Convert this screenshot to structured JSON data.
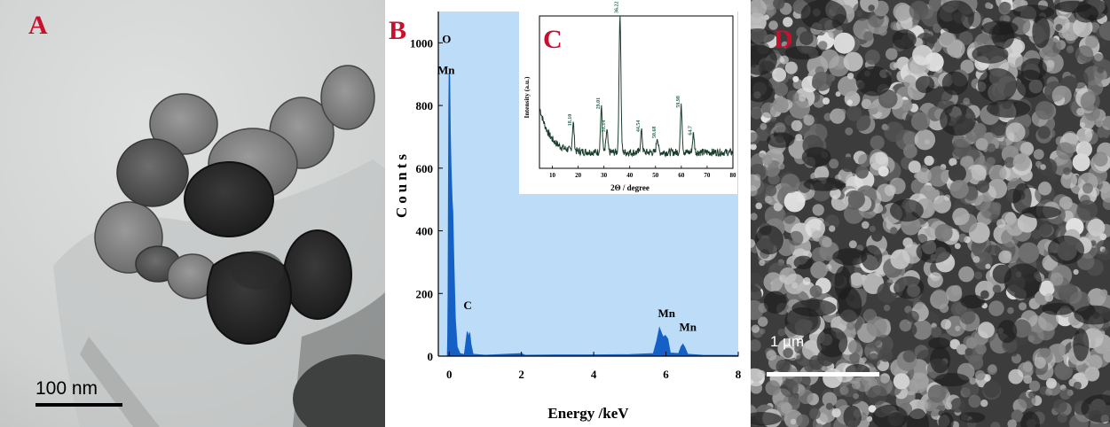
{
  "panels": {
    "a": {
      "letter": "A",
      "scale_bar": "100 nm"
    },
    "b": {
      "letter": "B"
    },
    "c": {
      "letter": "C"
    },
    "d": {
      "letter": "D",
      "scale_bar": "1 µm"
    }
  },
  "colors": {
    "panel_letter": "#c8102e",
    "eds_background": "#bcdcf7",
    "eds_line": "#1560c4",
    "xrd_line": "#1a3d2e",
    "xrd_peak_label": "#1f6b4a"
  },
  "chart_data": [
    {
      "type": "area",
      "name": "EDS spectrum",
      "xlabel": "Energy /keV",
      "ylabel": "Counts",
      "xlim": [
        -0.3,
        8
      ],
      "ylim": [
        0,
        1100
      ],
      "xticks": [
        0,
        2,
        4,
        6,
        8
      ],
      "yticks": [
        0,
        200,
        400,
        600,
        800,
        1000
      ],
      "grid": false,
      "peaks": [
        {
          "label": "O",
          "x": 0.0,
          "y": 905,
          "label_y": 1000
        },
        {
          "label": "Mn",
          "x": 0.02,
          "y": 905,
          "label_y": 900
        },
        {
          "label": "C",
          "x": 0.52,
          "y": 78,
          "label_y": 150
        },
        {
          "label": "Mn",
          "x": 5.9,
          "y": 90,
          "label_y": 125
        },
        {
          "label": "Mn",
          "x": 6.49,
          "y": 38,
          "label_y": 80
        }
      ],
      "spectrum": [
        [
          -0.3,
          0
        ],
        [
          -0.05,
          0
        ],
        [
          -0.04,
          60
        ],
        [
          -0.03,
          200
        ],
        [
          -0.02,
          500
        ],
        [
          -0.01,
          780
        ],
        [
          0.0,
          905
        ],
        [
          0.015,
          890
        ],
        [
          0.03,
          720
        ],
        [
          0.05,
          610
        ],
        [
          0.08,
          500
        ],
        [
          0.1,
          460
        ],
        [
          0.13,
          300
        ],
        [
          0.17,
          120
        ],
        [
          0.22,
          30
        ],
        [
          0.3,
          8
        ],
        [
          0.42,
          5
        ],
        [
          0.46,
          40
        ],
        [
          0.5,
          78
        ],
        [
          0.54,
          62
        ],
        [
          0.57,
          75
        ],
        [
          0.6,
          40
        ],
        [
          0.66,
          6
        ],
        [
          1.0,
          3
        ],
        [
          2.0,
          8
        ],
        [
          2.1,
          3
        ],
        [
          3.0,
          4
        ],
        [
          4.0,
          4
        ],
        [
          5.0,
          5
        ],
        [
          5.65,
          8
        ],
        [
          5.75,
          50
        ],
        [
          5.82,
          90
        ],
        [
          5.88,
          72
        ],
        [
          5.93,
          60
        ],
        [
          5.98,
          66
        ],
        [
          6.05,
          55
        ],
        [
          6.12,
          10
        ],
        [
          6.35,
          8
        ],
        [
          6.42,
          30
        ],
        [
          6.47,
          38
        ],
        [
          6.52,
          28
        ],
        [
          6.6,
          6
        ],
        [
          7.0,
          3
        ],
        [
          8.0,
          2
        ]
      ]
    },
    {
      "type": "line",
      "name": "XRD pattern inset",
      "xlabel": "2Θ / degree",
      "ylabel": "Intensity (a.u.)",
      "xlim": [
        5,
        80
      ],
      "ylim": [
        0,
        100
      ],
      "xticks": [
        10,
        20,
        30,
        40,
        50,
        60,
        70,
        80
      ],
      "grid": false,
      "peaks": [
        {
          "label": "18.10",
          "x": 18.1,
          "y": 26
        },
        {
          "label": "29.01",
          "x": 29.01,
          "y": 37
        },
        {
          "label": "31.14",
          "x": 31.14,
          "y": 22
        },
        {
          "label": "36.22",
          "x": 36.22,
          "y": 100
        },
        {
          "label": "44.54",
          "x": 44.54,
          "y": 22
        },
        {
          "label": "50.68",
          "x": 50.68,
          "y": 18
        },
        {
          "label": "59.98",
          "x": 59.98,
          "y": 38
        },
        {
          "label": "64.7",
          "x": 64.7,
          "y": 20
        }
      ]
    }
  ]
}
